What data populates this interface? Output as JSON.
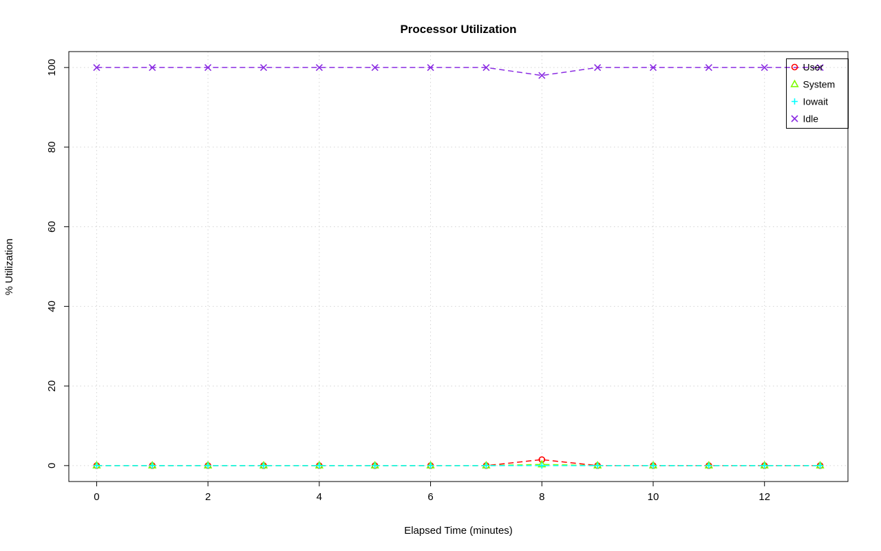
{
  "chart_data": {
    "type": "line",
    "title": "Processor Utilization",
    "xlabel": "Elapsed Time (minutes)",
    "ylabel": "% Utilization",
    "x": [
      0,
      1,
      2,
      3,
      4,
      5,
      6,
      7,
      8,
      9,
      10,
      11,
      12,
      13
    ],
    "xticks": [
      0,
      2,
      4,
      6,
      8,
      10,
      12
    ],
    "yticks": [
      0,
      20,
      40,
      60,
      80,
      100
    ],
    "xlim": [
      -0.5,
      13.5
    ],
    "ylim": [
      -4,
      104
    ],
    "grid": true,
    "grid_style": "dotted",
    "grid_color": "#d3d3d3",
    "line_style": "dashed",
    "legend_position": "top-right",
    "series": [
      {
        "name": "User",
        "color": "#ff0000",
        "marker": "circle",
        "values": [
          0,
          0,
          0,
          0,
          0,
          0,
          0,
          0,
          1.5,
          0,
          0,
          0,
          0,
          0
        ]
      },
      {
        "name": "System",
        "color": "#7cfc00",
        "marker": "triangle",
        "values": [
          0,
          0,
          0,
          0,
          0,
          0,
          0,
          0,
          0.3,
          0,
          0,
          0,
          0,
          0
        ]
      },
      {
        "name": "Iowait",
        "color": "#00ffff",
        "marker": "plus",
        "values": [
          0,
          0,
          0,
          0,
          0,
          0,
          0,
          0,
          0,
          0,
          0,
          0,
          0,
          0
        ]
      },
      {
        "name": "Idle",
        "color": "#8a2be2",
        "marker": "x",
        "values": [
          100,
          100,
          100,
          100,
          100,
          100,
          100,
          100,
          98,
          100,
          100,
          100,
          100,
          100
        ]
      }
    ]
  }
}
